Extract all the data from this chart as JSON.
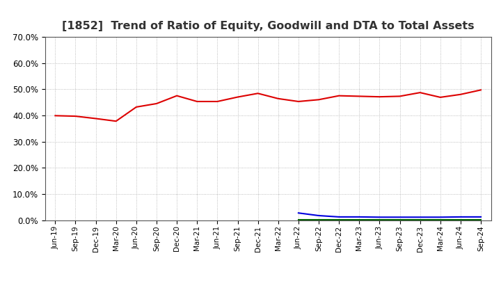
{
  "title": "[1852]  Trend of Ratio of Equity, Goodwill and DTA to Total Assets",
  "x_labels": [
    "Jun-19",
    "Sep-19",
    "Dec-19",
    "Mar-20",
    "Jun-20",
    "Sep-20",
    "Dec-20",
    "Mar-21",
    "Jun-21",
    "Sep-21",
    "Dec-21",
    "Mar-22",
    "Jun-22",
    "Sep-22",
    "Dec-22",
    "Mar-23",
    "Jun-23",
    "Sep-23",
    "Dec-23",
    "Mar-24",
    "Jun-24",
    "Sep-24"
  ],
  "equity": [
    0.399,
    0.397,
    0.388,
    0.378,
    0.432,
    0.445,
    0.475,
    0.453,
    0.453,
    0.47,
    0.484,
    0.464,
    0.453,
    0.46,
    0.475,
    0.473,
    0.471,
    0.473,
    0.487,
    0.469,
    0.48,
    0.497
  ],
  "goodwill": [
    null,
    null,
    null,
    null,
    null,
    null,
    null,
    null,
    null,
    null,
    null,
    null,
    0.028,
    0.018,
    0.013,
    0.013,
    0.012,
    0.012,
    0.012,
    0.012,
    0.013,
    0.013
  ],
  "dta": [
    null,
    null,
    null,
    null,
    null,
    null,
    null,
    null,
    null,
    null,
    null,
    null,
    0.003,
    0.003,
    0.003,
    0.003,
    0.003,
    0.003,
    0.003,
    0.003,
    0.003,
    0.003
  ],
  "equity_color": "#dd0000",
  "goodwill_color": "#0000dd",
  "dta_color": "#006600",
  "ylim": [
    0.0,
    0.7
  ],
  "yticks": [
    0.0,
    0.1,
    0.2,
    0.3,
    0.4,
    0.5,
    0.6,
    0.7
  ],
  "background_color": "#ffffff",
  "grid_color": "#aaaaaa",
  "title_fontsize": 11.5,
  "title_color": "#333333"
}
